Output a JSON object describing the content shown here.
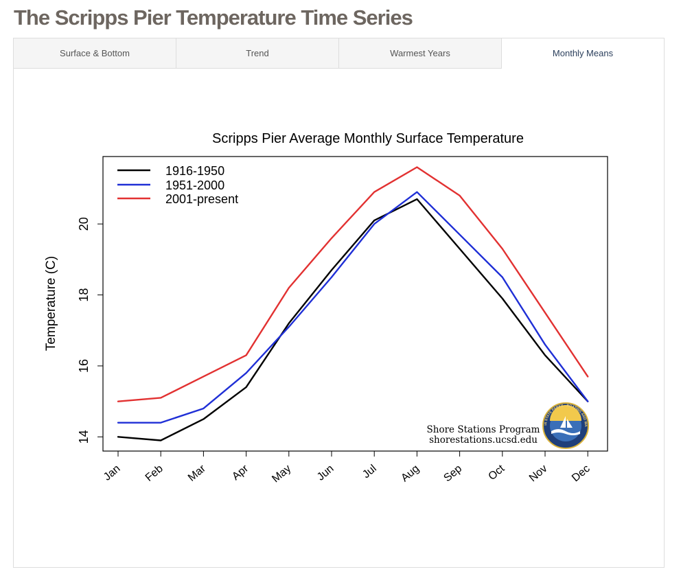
{
  "page": {
    "title": "The Scripps Pier Temperature Time Series"
  },
  "tabs": [
    {
      "label": "Surface & Bottom",
      "active": false
    },
    {
      "label": "Trend",
      "active": false
    },
    {
      "label": "Warmest Years",
      "active": false
    },
    {
      "label": "Monthly Means",
      "active": true
    }
  ],
  "credit": {
    "line1": "Shore Stations Program",
    "line2": "shorestations.ucsd.edu",
    "logo_text": "CALIFORNIA STATE PARKS · BOATING AND WATERWAYS"
  },
  "chart_data": {
    "type": "line",
    "title": "Scripps Pier Average Monthly Surface Temperature",
    "xlabel": "",
    "ylabel": "Temperature (C)",
    "categories": [
      "Jan",
      "Feb",
      "Mar",
      "Apr",
      "May",
      "Jun",
      "Jul",
      "Aug",
      "Sep",
      "Oct",
      "Nov",
      "Dec"
    ],
    "yticks": [
      14,
      16,
      18,
      20
    ],
    "ylim": [
      13.6,
      21.9
    ],
    "grid": false,
    "legend_position": "top-left",
    "series": [
      {
        "name": "1916-1950",
        "color": "#000000",
        "values": [
          14.0,
          13.9,
          14.5,
          15.4,
          17.2,
          18.7,
          20.1,
          20.7,
          19.3,
          17.9,
          16.3,
          15.0
        ]
      },
      {
        "name": "1951-2000",
        "color": "#1f2fd6",
        "values": [
          14.4,
          14.4,
          14.8,
          15.8,
          17.1,
          18.5,
          20.0,
          20.9,
          19.7,
          18.5,
          16.6,
          15.0
        ]
      },
      {
        "name": "2001-present",
        "color": "#e23131",
        "values": [
          15.0,
          15.1,
          15.7,
          16.3,
          18.2,
          19.6,
          20.9,
          21.6,
          20.8,
          19.3,
          17.5,
          15.7
        ]
      }
    ]
  }
}
